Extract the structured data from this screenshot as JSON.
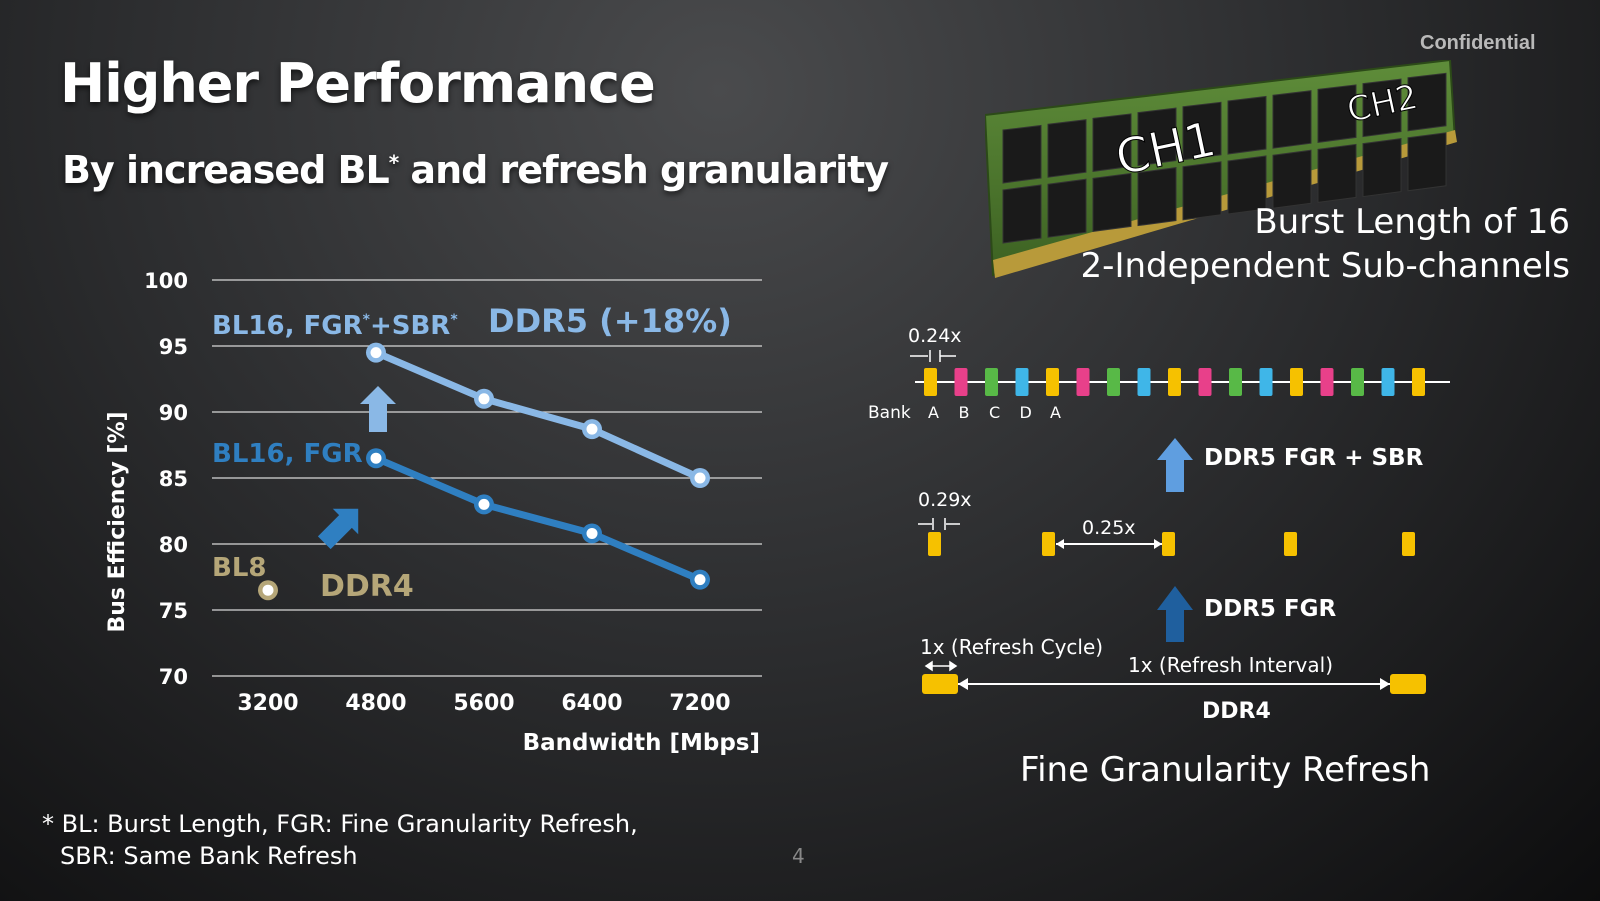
{
  "header": {
    "confidential": "Confidential",
    "title": "Higher Performance",
    "subtitle_main": "By increased BL",
    "subtitle_sup": "*",
    "subtitle_rest": " and refresh granularity"
  },
  "chart_data": {
    "type": "line",
    "xlabel": "Bandwidth [Mbps]",
    "ylabel": "Bus Efficiency [%]",
    "ylim": [
      70,
      100
    ],
    "yticks": [
      "70",
      "75",
      "80",
      "85",
      "90",
      "95",
      "100"
    ],
    "categories": [
      "3200",
      "4800",
      "5600",
      "6400",
      "7200"
    ],
    "grid": true,
    "series": [
      {
        "name": "BL16, FGR*+SBR*",
        "x": [
          "4800",
          "5600",
          "6400",
          "7200"
        ],
        "values": [
          94.5,
          91.0,
          88.7,
          85.0
        ],
        "color": "#8ab8e6"
      },
      {
        "name": "BL16, FGR",
        "x": [
          "4800",
          "5600",
          "6400",
          "7200"
        ],
        "values": [
          86.5,
          83.0,
          80.8,
          77.3
        ],
        "color": "#2f7fc1"
      },
      {
        "name": "BL8",
        "x": [
          "3200"
        ],
        "values": [
          76.5
        ],
        "color": "#b5a678"
      }
    ],
    "annotations": {
      "ddr5": "DDR5 (+18%)",
      "ddr4": "DDR4",
      "bl16_fgr_sbr": "BL16, FGR",
      "bl16_fgr_sbr_rest": "+SBR",
      "bl16_fgr": "BL16, FGR",
      "bl8": "BL8"
    }
  },
  "dimm": {
    "ch1": "CH1",
    "ch2": "CH2",
    "line1": "Burst Length of 16",
    "line2": "2-Independent Sub-channels"
  },
  "refresh": {
    "label_024": "0.24x",
    "bank_label": "Bank",
    "banks": [
      "A",
      "B",
      "C",
      "D",
      "A"
    ],
    "ddr5_fgr_sbr": "DDR5 FGR + SBR",
    "label_029": "0.29x",
    "label_025": "0.25x",
    "ddr5_fgr": "DDR5 FGR",
    "refresh_cycle": "1x (Refresh Cycle)",
    "refresh_interval": "1x (Refresh Interval)",
    "ddr4": "DDR4",
    "title": "Fine Granularity Refresh"
  },
  "footnote": {
    "line1": "* BL: Burst Length,  FGR:  Fine Granularity Refresh,",
    "line2": "SBR: Same Bank Refresh"
  },
  "page": {
    "number": "4"
  },
  "colors": {
    "yellow": "#f6c100",
    "pink": "#e8408a",
    "green": "#58b947",
    "light_blue": "#3fb6e8",
    "ddr5_light": "#8ab8e6",
    "ddr5_dark": "#2f7fc1",
    "ddr4": "#b5a678"
  }
}
